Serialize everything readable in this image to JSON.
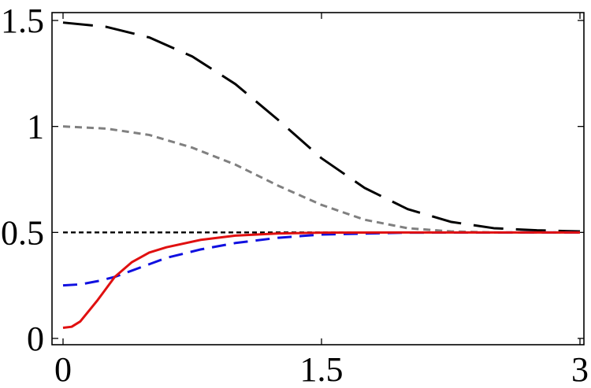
{
  "chart_data": {
    "type": "line",
    "title": "",
    "xlabel": "",
    "ylabel": "",
    "xlim": [
      0,
      3
    ],
    "ylim": [
      0,
      1.5
    ],
    "grid": false,
    "legend": "none",
    "x_ticks": [
      {
        "value": 0,
        "label": "0"
      },
      {
        "value": 1.5,
        "label": "1.5"
      },
      {
        "value": 3,
        "label": "3"
      }
    ],
    "y_ticks": [
      {
        "value": 0,
        "label": "0"
      },
      {
        "value": 0.5,
        "label": "0.5"
      },
      {
        "value": 1,
        "label": "1"
      },
      {
        "value": 1.5,
        "label": "1.5"
      }
    ],
    "series": [
      {
        "color": "#000000",
        "style": "long-dashed",
        "x": [
          0,
          0.25,
          0.5,
          0.75,
          1.0,
          1.25,
          1.5,
          1.75,
          2.0,
          2.25,
          2.5,
          2.75,
          3.0
        ],
        "y": [
          1.49,
          1.47,
          1.42,
          1.33,
          1.2,
          1.03,
          0.85,
          0.71,
          0.61,
          0.55,
          0.52,
          0.51,
          0.505
        ]
      },
      {
        "color": "#808080",
        "style": "short-dashed",
        "x": [
          0,
          0.25,
          0.5,
          0.75,
          1.0,
          1.25,
          1.5,
          1.75,
          2.0,
          2.25,
          2.5,
          2.75,
          3.0
        ],
        "y": [
          1.0,
          0.99,
          0.96,
          0.9,
          0.82,
          0.72,
          0.63,
          0.56,
          0.52,
          0.505,
          0.5,
          0.5,
          0.5
        ]
      },
      {
        "color": "#000000",
        "style": "fine-dashed",
        "x": [
          0,
          3.0
        ],
        "y": [
          0.5,
          0.5
        ]
      },
      {
        "color": "#e01010",
        "style": "solid",
        "x": [
          0,
          0.05,
          0.1,
          0.2,
          0.3,
          0.4,
          0.5,
          0.6,
          0.8,
          1.0,
          1.25,
          1.5,
          2.0,
          3.0
        ],
        "y": [
          0.05,
          0.055,
          0.08,
          0.18,
          0.29,
          0.36,
          0.405,
          0.43,
          0.465,
          0.485,
          0.495,
          0.499,
          0.5,
          0.5
        ]
      },
      {
        "color": "#1010e0",
        "style": "dashed",
        "x": [
          0,
          0.1,
          0.2,
          0.3,
          0.4,
          0.5,
          0.6,
          0.8,
          1.0,
          1.25,
          1.5,
          2.0,
          3.0
        ],
        "y": [
          0.25,
          0.255,
          0.27,
          0.29,
          0.32,
          0.35,
          0.38,
          0.42,
          0.45,
          0.475,
          0.49,
          0.499,
          0.5
        ]
      }
    ]
  }
}
